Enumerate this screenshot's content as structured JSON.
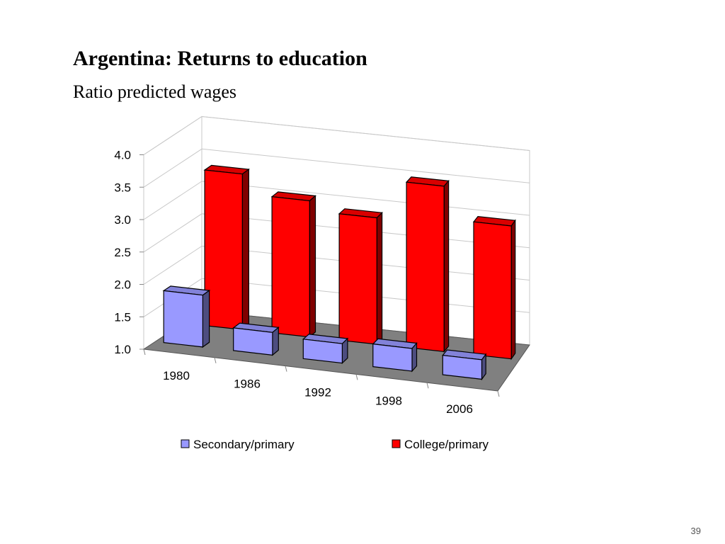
{
  "slide": {
    "title": "Argentina: Returns to education",
    "subtitle": "Ratio predicted wages",
    "page_number": "39"
  },
  "chart_data": {
    "type": "bar",
    "three_d": true,
    "categories": [
      "1980",
      "1986",
      "1992",
      "1998",
      "2006"
    ],
    "series": [
      {
        "name": "Secondary/primary",
        "values": [
          1.8,
          1.35,
          1.3,
          1.35,
          1.3
        ],
        "color": "#9999FF"
      },
      {
        "name": "College/primary",
        "values": [
          3.4,
          3.1,
          2.95,
          3.55,
          3.05
        ],
        "color": "#FF0000"
      }
    ],
    "ylim": [
      1.0,
      4.0
    ],
    "y_ticks": [
      "1.0",
      "1.5",
      "2.0",
      "2.5",
      "3.0",
      "3.5",
      "4.0"
    ],
    "grid": true,
    "legend_position": "bottom",
    "floor_color": "#808080"
  }
}
